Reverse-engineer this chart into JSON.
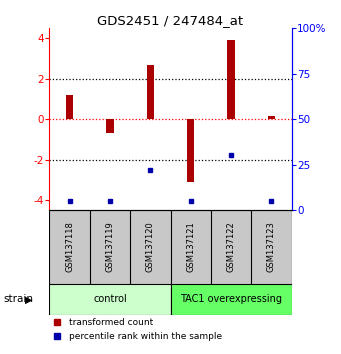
{
  "title": "GDS2451 / 247484_at",
  "samples": [
    "GSM137118",
    "GSM137119",
    "GSM137120",
    "GSM137121",
    "GSM137122",
    "GSM137123"
  ],
  "transformed_counts": [
    1.2,
    -0.7,
    2.7,
    -3.1,
    3.9,
    0.15
  ],
  "percentile_ranks_pct": [
    5,
    5,
    22,
    5,
    30,
    5
  ],
  "groups": [
    {
      "label": "control",
      "start": 0,
      "end": 3,
      "color": "#ccffcc"
    },
    {
      "label": "TAC1 overexpressing",
      "start": 3,
      "end": 6,
      "color": "#66ff66"
    }
  ],
  "bar_color_red": "#aa0000",
  "bar_color_blue": "#0000aa",
  "ylim_left": [
    -4.5,
    4.5
  ],
  "ylim_right": [
    0,
    100
  ],
  "yticks_left": [
    -4,
    -2,
    0,
    2,
    4
  ],
  "yticks_right": [
    0,
    25,
    50,
    75,
    100
  ],
  "ytick_labels_left": [
    "-4",
    "-2",
    "0",
    "2",
    "4"
  ],
  "ytick_labels_right": [
    "0",
    "25",
    "50",
    "75",
    "100%"
  ],
  "dotted_lines": [
    -2,
    2
  ],
  "zero_line_color": "red",
  "legend_red_label": "transformed count",
  "legend_blue_label": "percentile rank within the sample",
  "strain_label": "strain",
  "bar_width": 0.18,
  "background_color": "#ffffff",
  "sample_box_color": "#c8c8c8"
}
